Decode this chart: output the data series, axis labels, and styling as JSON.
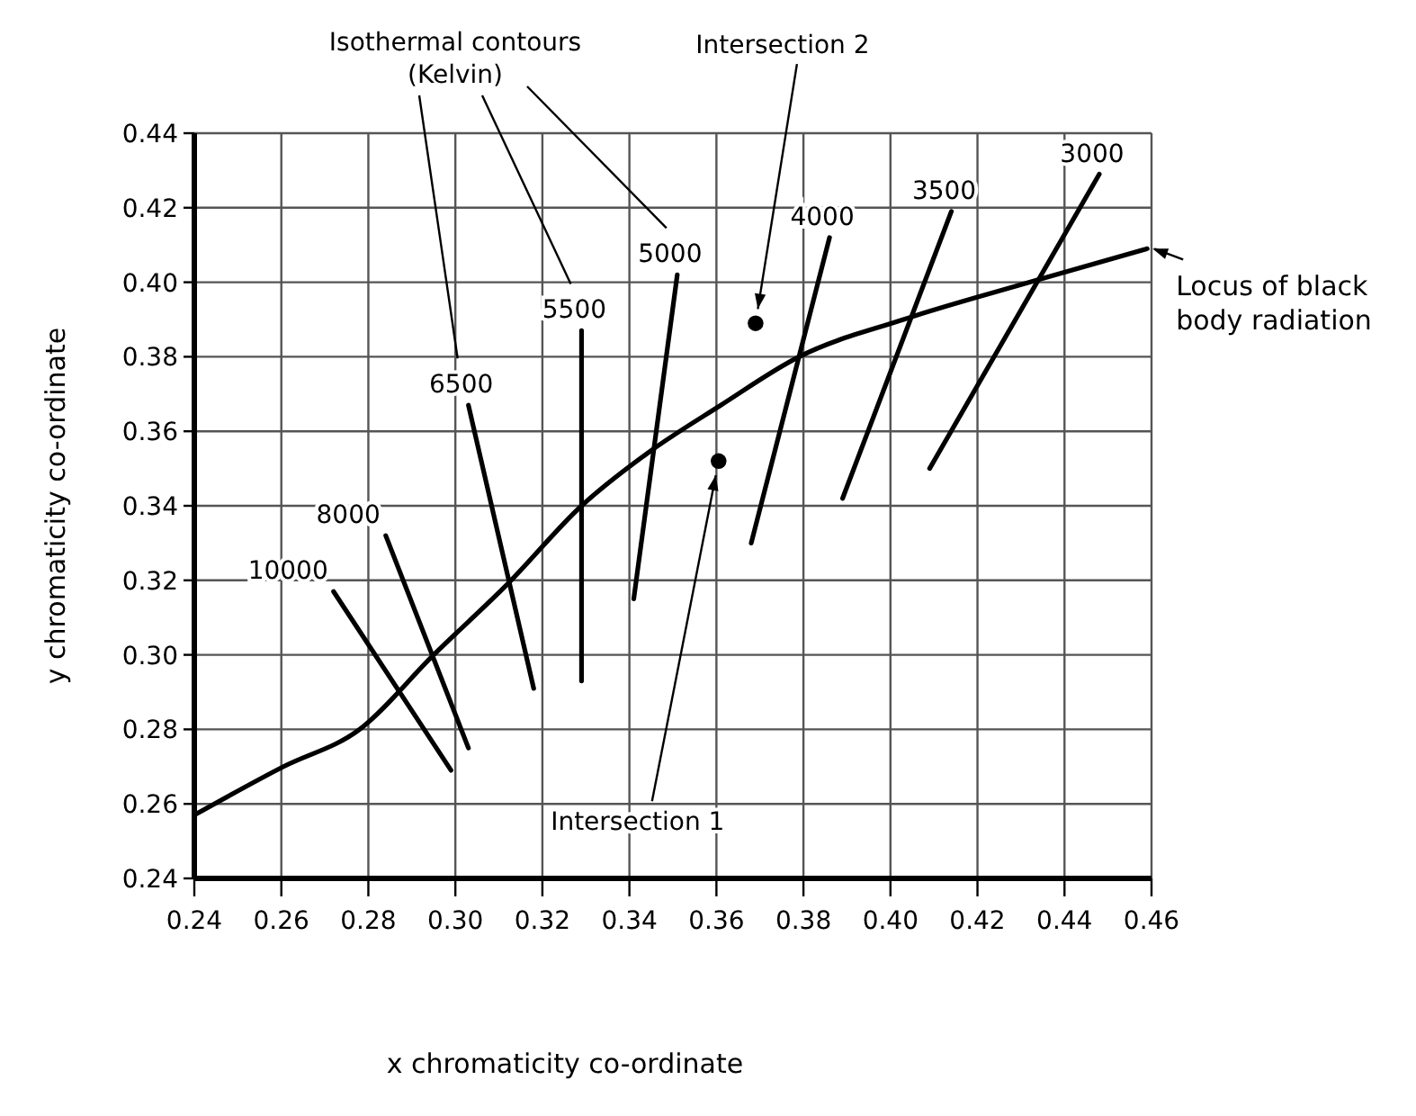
{
  "chart_data": {
    "type": "line",
    "xlabel": "x chromaticity co-ordinate",
    "ylabel": "y chromaticity co-ordinate",
    "xlim": [
      0.24,
      0.46
    ],
    "ylim": [
      0.24,
      0.44
    ],
    "xticks": [
      0.24,
      0.26,
      0.28,
      {
        "value": 0.3,
        "label": "0.30"
      },
      0.32,
      0.34,
      0.36,
      0.38,
      {
        "value": 0.4,
        "label": "0.40"
      },
      0.42,
      0.44,
      0.46
    ],
    "yticks": [
      0.24,
      0.26,
      0.28,
      {
        "value": 0.3,
        "label": "0.30"
      },
      0.32,
      0.34,
      0.36,
      0.38,
      {
        "value": 0.4,
        "label": "0.40"
      },
      0.42,
      0.44
    ],
    "grid": true,
    "series": [
      {
        "name": "Locus of black body radiation",
        "color": "#000000",
        "x": [
          0.24,
          0.2605,
          0.278,
          0.295,
          0.312,
          0.329,
          0.344,
          0.361,
          0.379,
          0.403,
          0.432,
          0.459
        ],
        "values": [
          0.257,
          0.27,
          0.28,
          0.3,
          0.319,
          0.34,
          0.354,
          0.367,
          0.38,
          0.39,
          0.4,
          0.409
        ]
      },
      {
        "name": "10000",
        "color": "#000000",
        "x": [
          0.272,
          0.299
        ],
        "values": [
          0.317,
          0.269
        ]
      },
      {
        "name": "8000",
        "color": "#000000",
        "x": [
          0.284,
          0.303
        ],
        "values": [
          0.332,
          0.275
        ]
      },
      {
        "name": "6500",
        "color": "#000000",
        "x": [
          0.303,
          0.318
        ],
        "values": [
          0.367,
          0.291
        ]
      },
      {
        "name": "5500",
        "color": "#000000",
        "x": [
          0.329,
          0.329
        ],
        "values": [
          0.387,
          0.293
        ]
      },
      {
        "name": "5000",
        "color": "#000000",
        "x": [
          0.351,
          0.341
        ],
        "values": [
          0.402,
          0.315
        ]
      },
      {
        "name": "4000",
        "color": "#000000",
        "x": [
          0.386,
          0.368
        ],
        "values": [
          0.412,
          0.33
        ]
      },
      {
        "name": "3500",
        "color": "#000000",
        "x": [
          0.414,
          0.389
        ],
        "values": [
          0.419,
          0.342
        ]
      },
      {
        "name": "3000",
        "color": "#000000",
        "x": [
          0.448,
          0.409
        ],
        "values": [
          0.429,
          0.35
        ]
      },
      {
        "type": "scatter",
        "marker": "circle",
        "color": "#000000",
        "x": [
          0.3605,
          0.369
        ],
        "values": [
          0.352,
          0.389
        ]
      }
    ],
    "annotations": [
      {
        "text": "Intersection 1",
        "x": 0.3605,
        "y": 0.352
      },
      {
        "text": "Intersection 2",
        "x": 0.369,
        "y": 0.389
      },
      "Isothermal contours (Kelvin)"
    ]
  }
}
